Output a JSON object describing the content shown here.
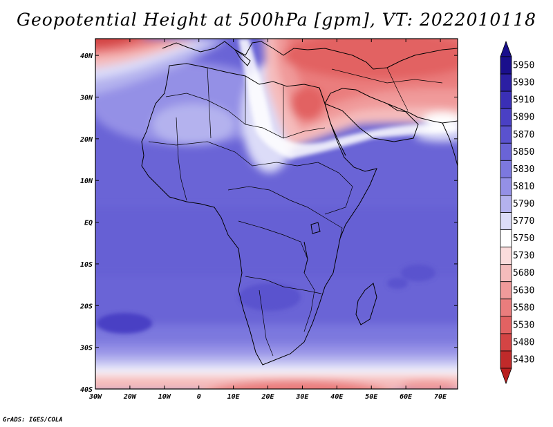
{
  "title": "Geopotential Height at 500hPa [gpm], VT: 2022010118",
  "credit": "GrADS: IGES/COLA",
  "map": {
    "region": "Africa",
    "lon_range": [
      -30,
      75
    ],
    "lat_range": [
      -40,
      44
    ],
    "field": "geopotential height 500hPa",
    "x_ticks": [
      {
        "label": "30W",
        "value": -30
      },
      {
        "label": "20W",
        "value": -20
      },
      {
        "label": "10W",
        "value": -10
      },
      {
        "label": "0",
        "value": 0
      },
      {
        "label": "10E",
        "value": 10
      },
      {
        "label": "20E",
        "value": 20
      },
      {
        "label": "30E",
        "value": 30
      },
      {
        "label": "40E",
        "value": 40
      },
      {
        "label": "50E",
        "value": 50
      },
      {
        "label": "60E",
        "value": 60
      },
      {
        "label": "70E",
        "value": 70
      }
    ],
    "y_ticks": [
      {
        "label": "40N",
        "value": 40
      },
      {
        "label": "30N",
        "value": 30
      },
      {
        "label": "20N",
        "value": 20
      },
      {
        "label": "10N",
        "value": 10
      },
      {
        "label": "EQ",
        "value": 0
      },
      {
        "label": "10S",
        "value": -10
      },
      {
        "label": "20S",
        "value": -20
      },
      {
        "label": "30S",
        "value": -30
      },
      {
        "label": "40S",
        "value": -40
      }
    ]
  },
  "colorbar": {
    "levels": [
      {
        "label": "5950",
        "color": "#1a0f8c"
      },
      {
        "label": "5930",
        "color": "#2b1fa3"
      },
      {
        "label": "5910",
        "color": "#3a2fb6"
      },
      {
        "label": "5890",
        "color": "#4a40c4"
      },
      {
        "label": "5870",
        "color": "#5a52ce"
      },
      {
        "label": "5850",
        "color": "#6a64d6"
      },
      {
        "label": "5830",
        "color": "#7c78de"
      },
      {
        "label": "5810",
        "color": "#9490e6"
      },
      {
        "label": "5790",
        "color": "#b4b2ee"
      },
      {
        "label": "5770",
        "color": "#dcdcf8"
      },
      {
        "label": "5750",
        "color": "#ffffff"
      },
      {
        "label": "5730",
        "color": "#fbdcdc"
      },
      {
        "label": "5680",
        "color": "#f5bcbc"
      },
      {
        "label": "5630",
        "color": "#f09a9a"
      },
      {
        "label": "5580",
        "color": "#ea7d7d"
      },
      {
        "label": "5530",
        "color": "#e26262"
      },
      {
        "label": "5480",
        "color": "#d44444"
      },
      {
        "label": "5430",
        "color": "#c02a2a"
      }
    ],
    "top_arrow_color": "#1a0f8c",
    "bottom_arrow_color": "#b81e1e"
  }
}
